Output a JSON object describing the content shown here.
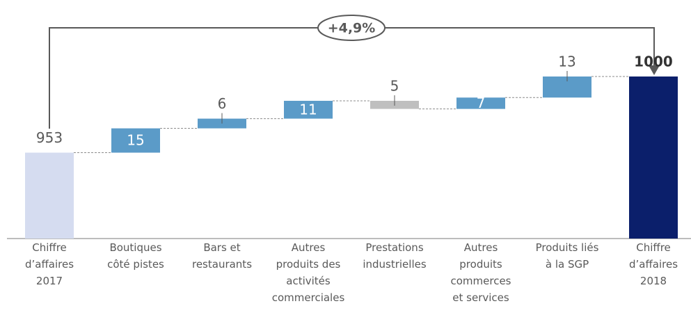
{
  "chart_data": {
    "type": "waterfall",
    "categories": [
      "Chiffre\nd’affaires\n2017",
      "Boutiques\ncôté pistes",
      "Bars et\nrestaurants",
      "Autres\nproduits des\nactivités\ncommerciales",
      "Prestations\nindustrielles",
      "Autres\nproduits\ncommerces\net services",
      "Produits liés\nà la SGP",
      "Chiffre\nd’affaires\n2018"
    ],
    "values": [
      953,
      15,
      6,
      11,
      5,
      7,
      13,
      1000
    ],
    "measure": [
      "total",
      "increase",
      "increase",
      "increase",
      "decrease",
      "increase",
      "increase",
      "total"
    ],
    "colors": [
      "#d5dcf0",
      "#5b9bc8",
      "#5b9bc8",
      "#5b9bc8",
      "#bfbfbf",
      "#5b9bc8",
      "#5b9bc8",
      "#0b1f6b"
    ],
    "label_inside": [
      false,
      true,
      false,
      true,
      false,
      true,
      false,
      false
    ],
    "ylim": [
      900,
      1010
    ],
    "annotation": "+4,9%"
  }
}
